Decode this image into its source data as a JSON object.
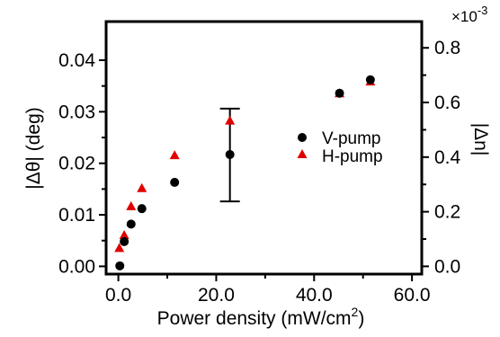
{
  "chart_data": {
    "type": "scatter",
    "xlabel": "Power density (mW/cm",
    "xlabel_sup": "2",
    "xlabel_close": ")",
    "ylabel": "|Δθ| (deg)",
    "y2label": "|Δn|",
    "y2_exponent": "×10",
    "y2_exponent_sup": "-3",
    "xlim": [
      -2.5,
      62
    ],
    "ylim": [
      -0.0015,
      0.0475
    ],
    "y2lim": [
      -0.0283,
      0.8962
    ],
    "x_ticks": [
      0,
      20,
      40,
      60
    ],
    "x_tick_labels": [
      "0.0",
      "20.0",
      "40.0",
      "60.0"
    ],
    "y_ticks": [
      0,
      0.01,
      0.02,
      0.03,
      0.04
    ],
    "y_tick_labels": [
      "0.00",
      "0.01",
      "0.02",
      "0.03",
      "0.04"
    ],
    "y2_ticks": [
      0,
      0.2,
      0.4,
      0.6,
      0.8
    ],
    "y2_tick_labels": [
      "0.0",
      "0.2",
      "0.4",
      "0.6",
      "0.8"
    ],
    "grid": false,
    "legend_position": "right-middle",
    "series": [
      {
        "name": "V-pump",
        "marker": "circle",
        "color": "#000000",
        "x": [
          0.3,
          1.2,
          2.6,
          4.8,
          11.5,
          22.8,
          45.2,
          51.5
        ],
        "y": [
          0.0001,
          0.0048,
          0.0082,
          0.0112,
          0.0163,
          0.0217,
          0.0336,
          0.0362
        ]
      },
      {
        "name": "H-pump",
        "marker": "triangle",
        "color": "#e00000",
        "x": [
          0.2,
          1.2,
          2.6,
          4.8,
          11.5,
          22.8,
          45.2,
          51.5
        ],
        "y": [
          0.0035,
          0.006,
          0.0116,
          0.0151,
          0.0215,
          0.0282,
          0.0335,
          0.0358
        ]
      }
    ],
    "error_bars": [
      {
        "x": 22.8,
        "y": 0.0217,
        "low": 0.0126,
        "high": 0.0306
      }
    ]
  }
}
